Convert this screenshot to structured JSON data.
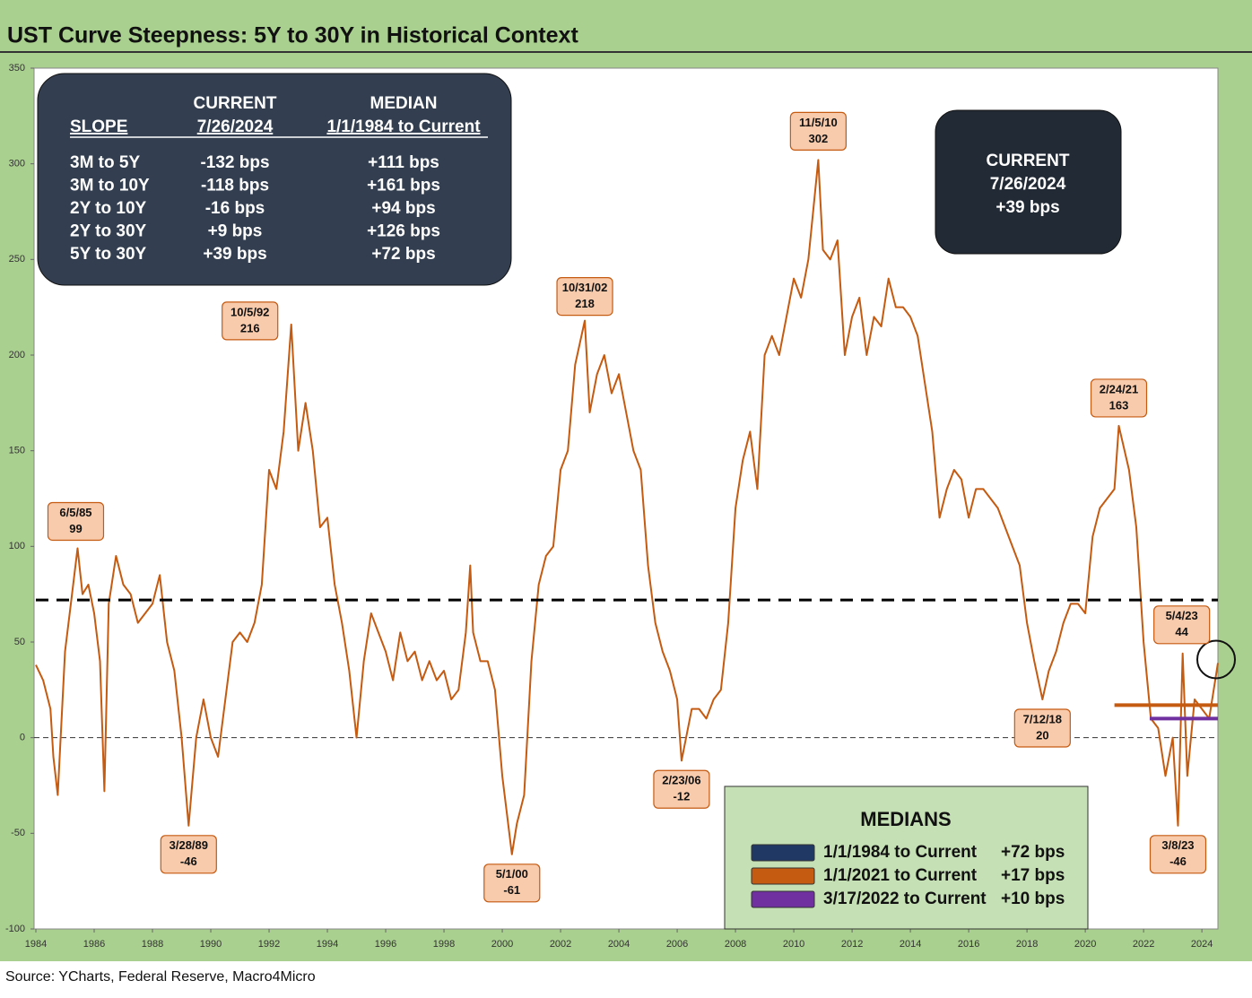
{
  "chart_data": {
    "type": "line",
    "title": "UST Curve Steepness: 5Y to 30Y in Historical Context",
    "source": "Source: YCharts, Federal Reserve, Macro4Micro",
    "xlim": [
      1984,
      2024.55
    ],
    "xticks": [
      1984,
      1986,
      1988,
      1990,
      1992,
      1994,
      1996,
      1998,
      2000,
      2002,
      2004,
      2006,
      2008,
      2010,
      2012,
      2014,
      2016,
      2018,
      2020,
      2022,
      2024
    ],
    "ylim": [
      -100,
      350
    ],
    "yticks": [
      350,
      300,
      250,
      200,
      150,
      100,
      50,
      0,
      -50,
      -100
    ],
    "x": [
      1984.0,
      1984.25,
      1984.5,
      1984.6,
      1984.75,
      1985.0,
      1985.2,
      1985.43,
      1985.6,
      1985.8,
      1986.0,
      1986.2,
      1986.35,
      1986.5,
      1986.75,
      1987.0,
      1987.25,
      1987.5,
      1987.75,
      1988.0,
      1988.25,
      1988.5,
      1988.75,
      1989.0,
      1989.24,
      1989.5,
      1989.75,
      1990.0,
      1990.25,
      1990.5,
      1990.75,
      1991.0,
      1991.25,
      1991.5,
      1991.75,
      1992.0,
      1992.25,
      1992.5,
      1992.76,
      1993.0,
      1993.25,
      1993.5,
      1993.75,
      1994.0,
      1994.25,
      1994.5,
      1994.75,
      1995.0,
      1995.25,
      1995.5,
      1995.75,
      1996.0,
      1996.25,
      1996.5,
      1996.75,
      1997.0,
      1997.25,
      1997.5,
      1997.75,
      1998.0,
      1998.25,
      1998.5,
      1998.75,
      1998.9,
      1999.0,
      1999.25,
      1999.5,
      1999.75,
      2000.0,
      2000.33,
      2000.5,
      2000.75,
      2001.0,
      2001.25,
      2001.5,
      2001.75,
      2002.0,
      2002.25,
      2002.5,
      2002.83,
      2003.0,
      2003.25,
      2003.5,
      2003.75,
      2004.0,
      2004.25,
      2004.5,
      2004.75,
      2005.0,
      2005.25,
      2005.5,
      2005.75,
      2006.0,
      2006.15,
      2006.5,
      2006.75,
      2007.0,
      2007.25,
      2007.5,
      2007.75,
      2008.0,
      2008.25,
      2008.5,
      2008.75,
      2009.0,
      2009.25,
      2009.5,
      2009.75,
      2010.0,
      2010.25,
      2010.5,
      2010.84,
      2011.0,
      2011.25,
      2011.5,
      2011.75,
      2012.0,
      2012.25,
      2012.5,
      2012.75,
      2013.0,
      2013.25,
      2013.5,
      2013.75,
      2014.0,
      2014.25,
      2014.5,
      2014.75,
      2015.0,
      2015.25,
      2015.5,
      2015.75,
      2016.0,
      2016.25,
      2016.5,
      2016.75,
      2017.0,
      2017.25,
      2017.5,
      2017.75,
      2018.0,
      2018.25,
      2018.53,
      2018.75,
      2019.0,
      2019.25,
      2019.5,
      2019.75,
      2020.0,
      2020.25,
      2020.5,
      2020.75,
      2021.0,
      2021.15,
      2021.5,
      2021.75,
      2022.0,
      2022.25,
      2022.5,
      2022.75,
      2023.0,
      2023.18,
      2023.34,
      2023.5,
      2023.75,
      2024.0,
      2024.25,
      2024.55
    ],
    "series": [
      {
        "name": "5Y to 30Y",
        "color": "#c55a11",
        "values": [
          38,
          30,
          15,
          -10,
          -30,
          45,
          70,
          99,
          75,
          80,
          65,
          40,
          -28,
          70,
          95,
          80,
          75,
          60,
          65,
          70,
          85,
          50,
          35,
          0,
          -46,
          0,
          20,
          0,
          -10,
          20,
          50,
          55,
          50,
          60,
          80,
          140,
          130,
          160,
          216,
          150,
          175,
          150,
          110,
          115,
          80,
          60,
          35,
          0,
          40,
          65,
          55,
          45,
          30,
          55,
          40,
          45,
          30,
          40,
          30,
          35,
          20,
          25,
          55,
          90,
          55,
          40,
          40,
          25,
          -20,
          -61,
          -45,
          -30,
          40,
          80,
          95,
          100,
          140,
          150,
          195,
          218,
          170,
          190,
          200,
          180,
          190,
          170,
          150,
          140,
          90,
          60,
          45,
          35,
          20,
          -12,
          15,
          15,
          10,
          20,
          25,
          60,
          120,
          145,
          160,
          130,
          200,
          210,
          200,
          220,
          240,
          230,
          250,
          302,
          255,
          250,
          260,
          200,
          220,
          230,
          200,
          220,
          215,
          240,
          225,
          225,
          220,
          210,
          185,
          160,
          115,
          130,
          140,
          135,
          115,
          130,
          130,
          125,
          120,
          110,
          100,
          90,
          60,
          40,
          20,
          35,
          45,
          60,
          70,
          70,
          65,
          105,
          120,
          125,
          130,
          163,
          140,
          110,
          50,
          10,
          5,
          -20,
          0,
          -46,
          44,
          -20,
          20,
          15,
          10,
          39
        ]
      }
    ],
    "annotations": [
      {
        "label": "6/5/85",
        "value": 99,
        "x": 1985.43
      },
      {
        "label": "3/28/89",
        "value": -46,
        "x": 1989.24
      },
      {
        "label": "10/5/92",
        "value": 216,
        "x": 1992.76
      },
      {
        "label": "5/1/00",
        "value": -61,
        "x": 2000.33
      },
      {
        "label": "10/31/02",
        "value": 218,
        "x": 2002.83
      },
      {
        "label": "2/23/06",
        "value": -12,
        "x": 2006.15
      },
      {
        "label": "11/5/10",
        "value": 302,
        "x": 2010.84
      },
      {
        "label": "7/12/18",
        "value": 20,
        "x": 2018.53
      },
      {
        "label": "2/24/21",
        "value": 163,
        "x": 2021.15
      },
      {
        "label": "5/4/23",
        "value": 44,
        "x": 2023.34
      },
      {
        "label": "3/8/23",
        "value": -46,
        "x": 2023.18
      }
    ],
    "medians_title": "MEDIANS",
    "medians": [
      {
        "name": "1/1/1984 to Current",
        "value": 72,
        "value_label": "+72 bps",
        "start": 1984,
        "color": "#1f3864",
        "style": "dashed"
      },
      {
        "name": "1/1/2021 to Current",
        "value": 17,
        "value_label": "+17 bps",
        "start": 2021,
        "color": "#c55a11",
        "style": "solid"
      },
      {
        "name": "3/17/2022 to Current",
        "value": 10,
        "value_label": "+10 bps",
        "start": 2022.21,
        "color": "#7030a0",
        "style": "solid"
      }
    ],
    "current_box": [
      "CURRENT",
      "7/26/2024",
      "+39 bps"
    ],
    "table": {
      "header_top": [
        "CURRENT",
        "MEDIAN"
      ],
      "header": [
        "SLOPE",
        "7/26/2024",
        "1/1/1984 to Current"
      ],
      "rows": [
        [
          "3M to 5Y",
          "-132 bps",
          "+111 bps"
        ],
        [
          "3M to 10Y",
          "-118 bps",
          "+161 bps"
        ],
        [
          "2Y to 10Y",
          "-16 bps",
          "+94 bps"
        ],
        [
          "2Y to 30Y",
          "+9 bps",
          "+126 bps"
        ],
        [
          "5Y to 30Y",
          "+39 bps",
          "+72 bps"
        ]
      ]
    }
  }
}
